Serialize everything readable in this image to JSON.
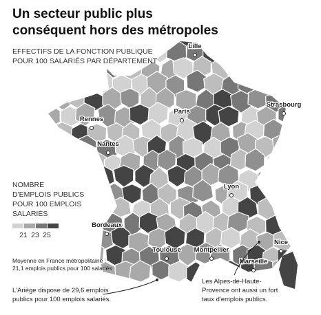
{
  "header": {
    "title": [
      "Un secteur public plus",
      "conséquent hors des métropoles"
    ],
    "subtitle": [
      "EFFECTIFS DE LA FONCTION PUBLIQUE",
      "POUR 100 SALARIÉS PAR DÉPARTEMENT"
    ]
  },
  "legend": {
    "title": [
      "NOMBRE",
      "D'EMPLOIS PUBLICS",
      "POUR 100 EMPLOIS",
      "SALARIÉS"
    ],
    "ticks": [
      21,
      23,
      25
    ]
  },
  "cities": [
    "Lille",
    "Strasbourg",
    "Rennes",
    "Paris",
    "Nantes",
    "Lyon",
    "Bordeaux",
    "Toulouse",
    "Montpellier",
    "Marseille",
    "Nice"
  ],
  "notes": {
    "average": [
      "Moyenne en France métropolitaine :",
      "21,1 emplois publics pour 100 salariés"
    ],
    "ariege": [
      "L'Ariège dispose de 29,6 emplois",
      "publics pour 100 emplois salariés."
    ],
    "alpes": [
      "Les Alpes-de-Haute-",
      "Provence ont aussi un fort",
      "taux d'emplois publics."
    ]
  }
}
